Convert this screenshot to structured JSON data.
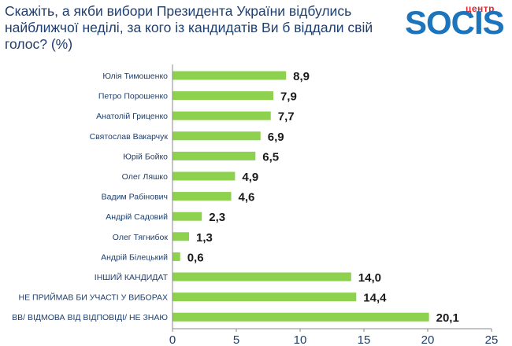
{
  "header": {
    "title": "Скажіть, а якби вибори Президента України відбулись найближчої неділі, за кого із кандидатів Ви б віддали свій голос? (%)"
  },
  "logo": {
    "small_text": "центр",
    "main_text": "SOCIS"
  },
  "colors": {
    "bar": "#8dd14f",
    "title": "#1f3f6e",
    "logo_blue": "#1c75bc",
    "logo_red": "#e8262b"
  },
  "chart_data": {
    "type": "bar",
    "orientation": "horizontal",
    "title": "Скажіть, а якби вибори Президента України відбулись найближчої неділі, за кого із кандидатів Ви б віддали свій голос? (%)",
    "categories": [
      "Юлія Тимошенко",
      "Петро Порошенко",
      "Анатолій Гриценко",
      "Святослав Вакарчук",
      "Юрій Бойко",
      "Олег Ляшко",
      "Вадим Рабінович",
      "Андрій Садовий",
      "Олег Тягнибок",
      "Андрій Білецький",
      "ІНШИЙ КАНДИДАТ",
      "НЕ ПРИЙМАВ БИ УЧАСТІ У ВИБОРАХ",
      "ВВ/ ВІДМОВА ВІД ВІДПОВІДІ/ НЕ ЗНАЮ"
    ],
    "values": [
      8.9,
      7.9,
      7.7,
      6.9,
      6.5,
      4.9,
      4.6,
      2.3,
      1.3,
      0.6,
      14.0,
      14.4,
      20.1
    ],
    "value_labels": [
      "8,9",
      "7,9",
      "7,7",
      "6,9",
      "6,5",
      "4,9",
      "4,6",
      "2,3",
      "1,3",
      "0,6",
      "14,0",
      "14,4",
      "20,1"
    ],
    "xlim": [
      0,
      25
    ],
    "xticks": [
      "0",
      "5",
      "10",
      "15",
      "20",
      "25"
    ],
    "xtick_values": [
      0,
      5,
      10,
      15,
      20,
      25
    ],
    "xlabel": "",
    "ylabel": "",
    "grid": false,
    "legend": "none"
  }
}
